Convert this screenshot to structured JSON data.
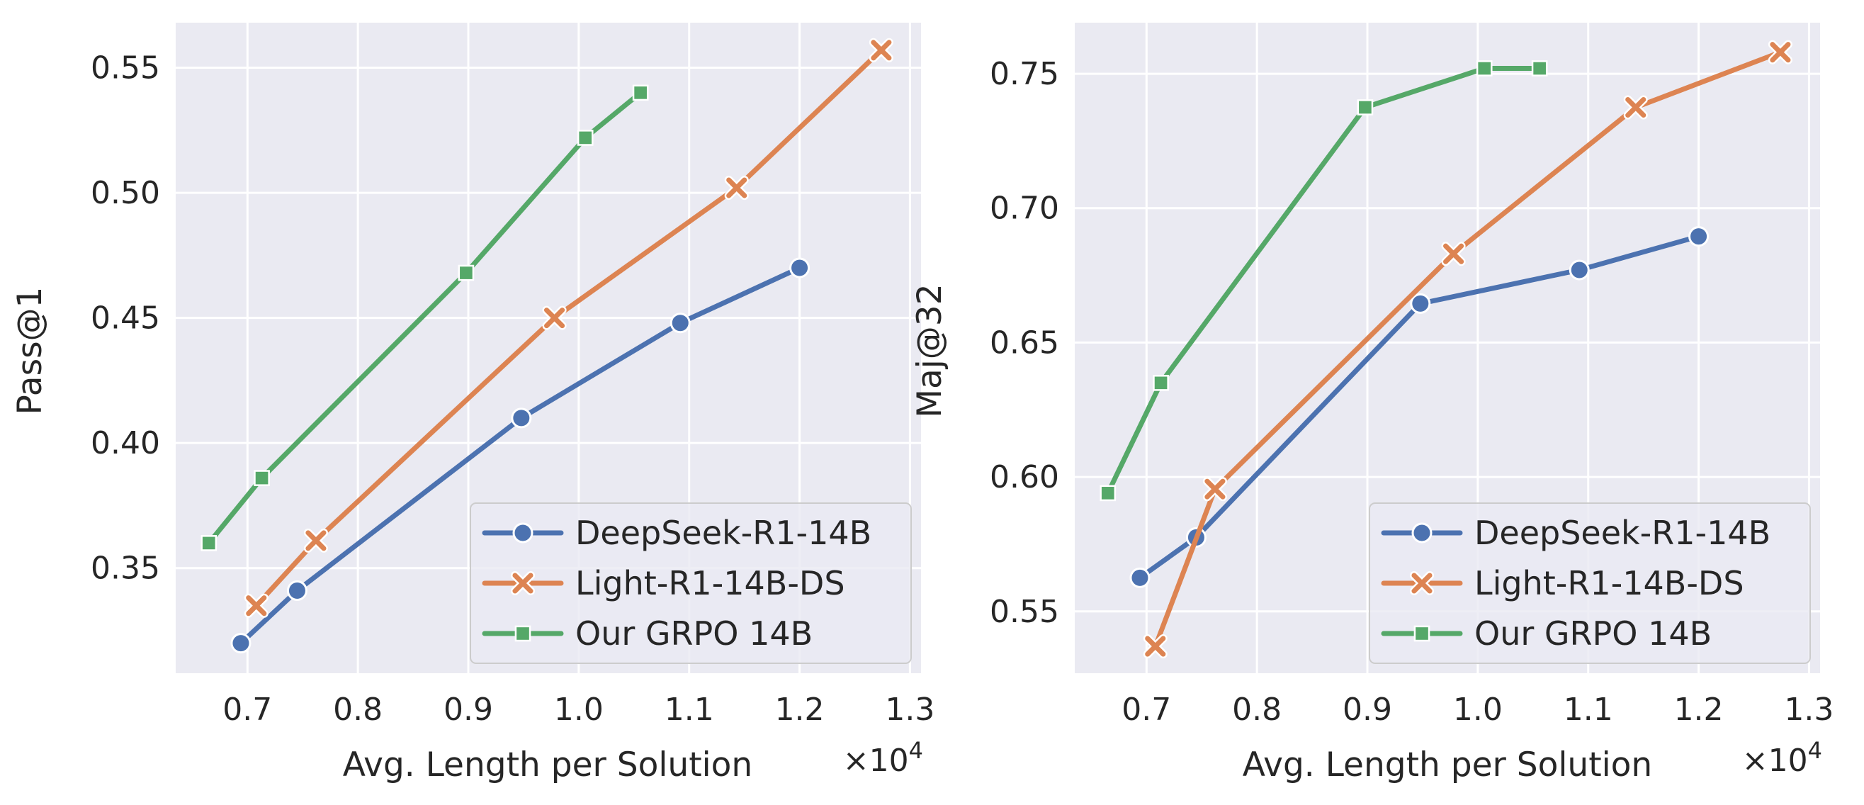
{
  "chart_data": [
    {
      "type": "line",
      "xlabel": "Avg. Length per Solution",
      "x_multiplier": "×10⁴",
      "x_offset_text": "×10",
      "x_offset_exp": "4",
      "ylabel": "Pass@1",
      "xlim": [
        0.635,
        1.31
      ],
      "ylim": [
        0.308,
        0.568
      ],
      "xticks": [
        0.7,
        0.8,
        0.9,
        1.0,
        1.1,
        1.2,
        1.3
      ],
      "xtick_labels": [
        "0.7",
        "0.8",
        "0.9",
        "1.0",
        "1.1",
        "1.2",
        "1.3"
      ],
      "yticks": [
        0.35,
        0.4,
        0.45,
        0.5,
        0.55
      ],
      "ytick_labels": [
        "0.35",
        "0.40",
        "0.45",
        "0.50",
        "0.55"
      ],
      "grid": true,
      "legend_position": "lower-right",
      "series": [
        {
          "name": "DeepSeek-R1-14B",
          "color": "#4c72b0",
          "marker": "circle",
          "x": [
            0.694,
            0.745,
            0.948,
            1.092,
            1.2
          ],
          "y": [
            0.32,
            0.341,
            0.41,
            0.448,
            0.47
          ]
        },
        {
          "name": "Light-R1-14B-DS",
          "color": "#dd8452",
          "marker": "x",
          "x": [
            0.708,
            0.762,
            0.978,
            1.143,
            1.274
          ],
          "y": [
            0.335,
            0.361,
            0.45,
            0.502,
            0.557
          ]
        },
        {
          "name": "Our GRPO 14B",
          "color": "#55a868",
          "marker": "square",
          "x": [
            0.665,
            0.713,
            0.898,
            1.006,
            1.056
          ],
          "y": [
            0.36,
            0.386,
            0.468,
            0.522,
            0.54
          ]
        }
      ]
    },
    {
      "type": "line",
      "xlabel": "Avg. Length per Solution",
      "x_multiplier": "×10⁴",
      "x_offset_text": "×10",
      "x_offset_exp": "4",
      "ylabel": "Maj@32",
      "xlim": [
        0.635,
        1.31
      ],
      "ylim": [
        0.527,
        0.769
      ],
      "xticks": [
        0.7,
        0.8,
        0.9,
        1.0,
        1.1,
        1.2,
        1.3
      ],
      "xtick_labels": [
        "0.7",
        "0.8",
        "0.9",
        "1.0",
        "1.1",
        "1.2",
        "1.3"
      ],
      "yticks": [
        0.55,
        0.6,
        0.65,
        0.7,
        0.75
      ],
      "ytick_labels": [
        "0.55",
        "0.60",
        "0.65",
        "0.70",
        "0.75"
      ],
      "grid": true,
      "legend_position": "lower-right",
      "series": [
        {
          "name": "DeepSeek-R1-14B",
          "color": "#4c72b0",
          "marker": "circle",
          "x": [
            0.694,
            0.745,
            0.948,
            1.092,
            1.2
          ],
          "y": [
            0.5625,
            0.5775,
            0.6645,
            0.677,
            0.6895
          ]
        },
        {
          "name": "Light-R1-14B-DS",
          "color": "#dd8452",
          "marker": "x",
          "x": [
            0.708,
            0.762,
            0.978,
            1.143,
            1.274
          ],
          "y": [
            0.537,
            0.5955,
            0.683,
            0.7375,
            0.758
          ]
        },
        {
          "name": "Our GRPO 14B",
          "color": "#55a868",
          "marker": "square",
          "x": [
            0.665,
            0.713,
            0.898,
            1.006,
            1.056
          ],
          "y": [
            0.594,
            0.635,
            0.7375,
            0.752,
            0.752
          ]
        }
      ]
    }
  ]
}
